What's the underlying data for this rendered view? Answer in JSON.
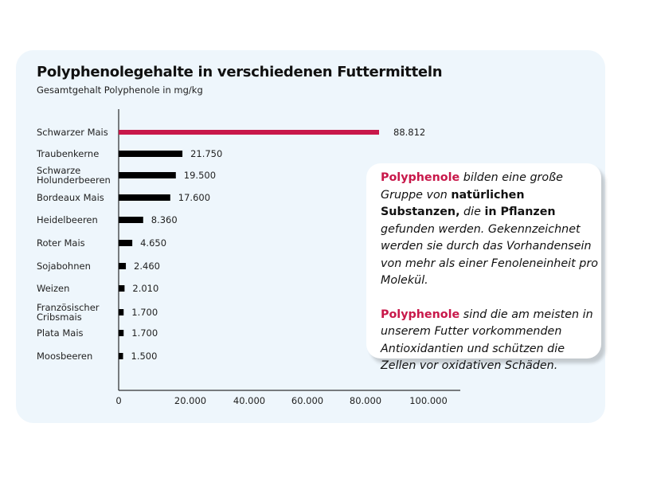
{
  "chart_data": {
    "type": "bar",
    "orientation": "horizontal",
    "title": "Polyphenolegehalte in verschiedenen Futtermitteln",
    "subtitle": "Gesamtgehalt Polyphenole in mg/kg",
    "categories": [
      "Schwarzer Mais",
      "Traubenkerne",
      "Schwarze Holunderbeeren",
      "Bordeaux Mais",
      "Heidelbeeren",
      "Roter Mais",
      "Sojabohnen",
      "Weizen",
      "Französischer Cribsmais",
      "Plata Mais",
      "Moosbeeren"
    ],
    "category_lines": [
      [
        "Schwarzer Mais"
      ],
      [
        "Traubenkerne"
      ],
      [
        "Schwarze",
        "Holunderbeeren"
      ],
      [
        "Bordeaux Mais"
      ],
      [
        "Heidelbeeren"
      ],
      [
        "Roter Mais"
      ],
      [
        "Sojabohnen"
      ],
      [
        "Weizen"
      ],
      [
        "Französischer",
        "Cribsmais"
      ],
      [
        "Plata Mais"
      ],
      [
        "Moosbeeren"
      ]
    ],
    "values": [
      88812,
      21750,
      19500,
      17600,
      8360,
      4650,
      2460,
      2010,
      1700,
      1700,
      1500
    ],
    "value_labels": [
      "88.812",
      "21.750",
      "19.500",
      "17.600",
      "8.360",
      "4.650",
      "2.460",
      "2.010",
      "1.700",
      "1.700",
      "1.500"
    ],
    "xlim": [
      0,
      100000
    ],
    "x_ticks": [
      0,
      20000,
      40000,
      60000,
      80000,
      100000
    ],
    "x_tick_labels": [
      "0",
      "20.000",
      "40.000",
      "60.000",
      "80.000",
      "100.000"
    ],
    "grid": false,
    "colors": {
      "highlight": "#c8184a",
      "default": "#000000"
    },
    "highlight_index": 0
  },
  "info": {
    "p1": [
      {
        "t": "Polyphenole",
        "s": "pink"
      },
      {
        "t": " bilden eine große Gruppe von ",
        "s": "i"
      },
      {
        "t": "natürlichen Substanzen,",
        "s": "b"
      },
      {
        "t": " die ",
        "s": "i"
      },
      {
        "t": "in Pflanzen",
        "s": "b"
      },
      {
        "t": " gefunden werden. Gekennzeichnet werden sie durch das Vorhandensein von mehr als einer Fenoleneinheit pro Molekül.",
        "s": "i"
      }
    ],
    "p2": [
      {
        "t": "Polyphenole",
        "s": "pink"
      },
      {
        "t": " sind die am meisten in unserem Futter vorkommenden Antioxidantien und schützen die Zellen vor oxidativen Schäden.",
        "s": "i"
      }
    ]
  }
}
